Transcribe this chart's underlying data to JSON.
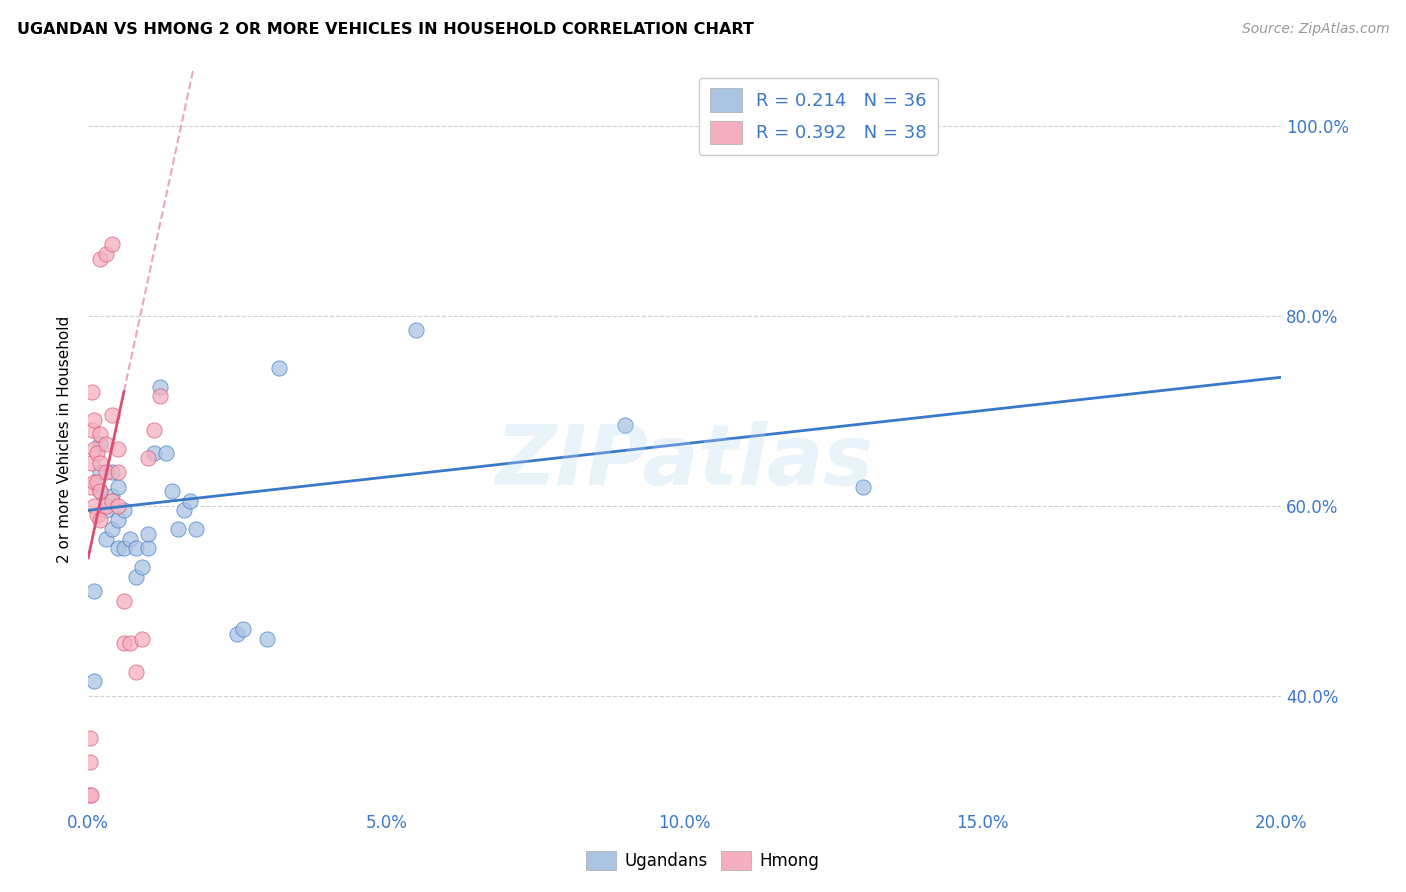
{
  "title": "UGANDAN VS HMONG 2 OR MORE VEHICLES IN HOUSEHOLD CORRELATION CHART",
  "source": "Source: ZipAtlas.com",
  "ylabel": "2 or more Vehicles in Household",
  "xlim": [
    0.0,
    0.2
  ],
  "ylim": [
    0.28,
    1.06
  ],
  "ugandan_R": 0.214,
  "ugandan_N": 36,
  "hmong_R": 0.392,
  "hmong_N": 38,
  "ugandan_color": "#aac4e2",
  "hmong_color": "#f5afc0",
  "trend_ugandan_color": "#3a78c9",
  "trend_hmong_color": "#d94f72",
  "watermark": "ZIPatlas",
  "ugandan_x": [
    0.001,
    0.001,
    0.002,
    0.002,
    0.002,
    0.003,
    0.003,
    0.004,
    0.004,
    0.004,
    0.005,
    0.005,
    0.005,
    0.006,
    0.006,
    0.007,
    0.008,
    0.008,
    0.009,
    0.01,
    0.01,
    0.011,
    0.012,
    0.013,
    0.014,
    0.015,
    0.016,
    0.017,
    0.018,
    0.025,
    0.026,
    0.03,
    0.032,
    0.055,
    0.09,
    0.13
  ],
  "ugandan_y": [
    0.415,
    0.51,
    0.615,
    0.635,
    0.665,
    0.565,
    0.595,
    0.575,
    0.61,
    0.635,
    0.555,
    0.585,
    0.62,
    0.555,
    0.595,
    0.565,
    0.555,
    0.525,
    0.535,
    0.555,
    0.57,
    0.655,
    0.725,
    0.655,
    0.615,
    0.575,
    0.595,
    0.605,
    0.575,
    0.465,
    0.47,
    0.46,
    0.745,
    0.785,
    0.685,
    0.62
  ],
  "hmong_x": [
    0.0003,
    0.0003,
    0.0003,
    0.0004,
    0.0005,
    0.0005,
    0.0006,
    0.0006,
    0.001,
    0.001,
    0.001,
    0.001,
    0.0015,
    0.0015,
    0.0015,
    0.002,
    0.002,
    0.002,
    0.002,
    0.002,
    0.003,
    0.003,
    0.003,
    0.003,
    0.004,
    0.004,
    0.004,
    0.005,
    0.005,
    0.005,
    0.006,
    0.006,
    0.007,
    0.008,
    0.009,
    0.01,
    0.011,
    0.012
  ],
  "hmong_y": [
    0.33,
    0.355,
    0.295,
    0.295,
    0.62,
    0.645,
    0.68,
    0.72,
    0.6,
    0.625,
    0.66,
    0.69,
    0.59,
    0.625,
    0.655,
    0.585,
    0.615,
    0.645,
    0.675,
    0.86,
    0.6,
    0.635,
    0.665,
    0.865,
    0.875,
    0.695,
    0.605,
    0.6,
    0.635,
    0.66,
    0.5,
    0.455,
    0.455,
    0.425,
    0.46,
    0.65,
    0.68,
    0.715
  ],
  "trend_ug_x0": 0.0,
  "trend_ug_x1": 0.2,
  "trend_ug_y0": 0.595,
  "trend_ug_y1": 0.735,
  "trend_hm_solid_x0": 0.0,
  "trend_hm_solid_x1": 0.006,
  "trend_hm_solid_y0": 0.545,
  "trend_hm_solid_y1": 0.72,
  "trend_hm_dash_x0": 0.006,
  "trend_hm_dash_x1": 0.018,
  "trend_hm_dash_y0": 0.72,
  "trend_hm_dash_y1": 1.07,
  "grid_color": "#cccccc",
  "ytick_vals": [
    0.4,
    0.6,
    0.8,
    1.0
  ],
  "ytick_labels": [
    "40.0%",
    "60.0%",
    "80.0%",
    "100.0%"
  ],
  "xtick_vals": [
    0.0,
    0.05,
    0.1,
    0.15,
    0.2
  ],
  "xtick_labels": [
    "0.0%",
    "5.0%",
    "10.0%",
    "15.0%",
    "20.0%"
  ]
}
